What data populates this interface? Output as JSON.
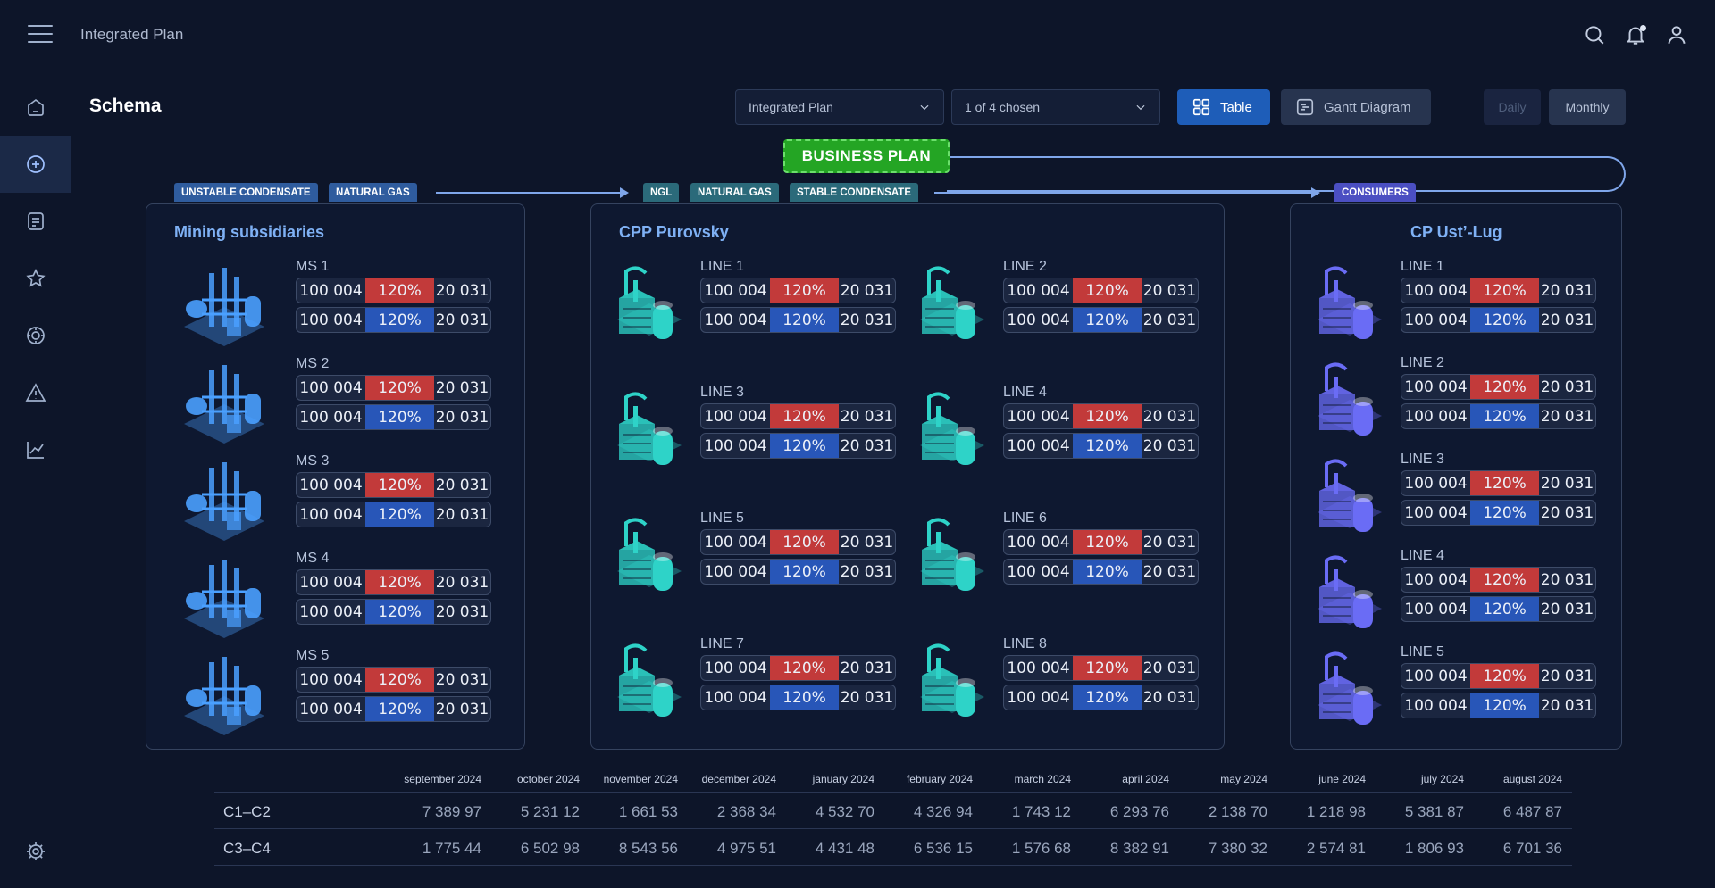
{
  "header": {
    "title": "Integrated Plan"
  },
  "page": {
    "title": "Schema"
  },
  "filters": {
    "plan_select": "Integrated Plan",
    "chosen_select": "1 of 4 chosen"
  },
  "view": {
    "table_label": "Table",
    "gantt_label": "Gantt Diagram",
    "daily_label": "Daily",
    "monthly_label": "Monthly"
  },
  "flow": {
    "business_plan": "BUSINESS PLAN",
    "tags": [
      "UNSTABLE CONDENSATE",
      "NATURAL GAS",
      "NGL",
      "NATURAL GAS",
      "STABLE CONDENSATE",
      "CONSUMERS"
    ]
  },
  "panels": {
    "mining": {
      "title": "Mining subsidiaries",
      "units": [
        {
          "label": "MS 1",
          "r1": [
            "100 004",
            "120%",
            "20 031"
          ],
          "r2": [
            "100 004",
            "120%",
            "20 031"
          ]
        },
        {
          "label": "MS 2",
          "r1": [
            "100 004",
            "120%",
            "20 031"
          ],
          "r2": [
            "100 004",
            "120%",
            "20 031"
          ]
        },
        {
          "label": "MS 3",
          "r1": [
            "100 004",
            "120%",
            "20 031"
          ],
          "r2": [
            "100 004",
            "120%",
            "20 031"
          ]
        },
        {
          "label": "MS 4",
          "r1": [
            "100 004",
            "120%",
            "20 031"
          ],
          "r2": [
            "100 004",
            "120%",
            "20 031"
          ]
        },
        {
          "label": "MS 5",
          "r1": [
            "100 004",
            "120%",
            "20 031"
          ],
          "r2": [
            "100 004",
            "120%",
            "20 031"
          ]
        }
      ]
    },
    "cpp": {
      "title": "CPP Purovsky",
      "units": [
        {
          "label": "LINE 1",
          "r1": [
            "100 004",
            "120%",
            "20 031"
          ],
          "r2": [
            "100 004",
            "120%",
            "20 031"
          ]
        },
        {
          "label": "LINE 2",
          "r1": [
            "100 004",
            "120%",
            "20 031"
          ],
          "r2": [
            "100 004",
            "120%",
            "20 031"
          ]
        },
        {
          "label": "LINE 3",
          "r1": [
            "100 004",
            "120%",
            "20 031"
          ],
          "r2": [
            "100 004",
            "120%",
            "20 031"
          ]
        },
        {
          "label": "LINE 4",
          "r1": [
            "100 004",
            "120%",
            "20 031"
          ],
          "r2": [
            "100 004",
            "120%",
            "20 031"
          ]
        },
        {
          "label": "LINE 5",
          "r1": [
            "100 004",
            "120%",
            "20 031"
          ],
          "r2": [
            "100 004",
            "120%",
            "20 031"
          ]
        },
        {
          "label": "LINE 6",
          "r1": [
            "100 004",
            "120%",
            "20 031"
          ],
          "r2": [
            "100 004",
            "120%",
            "20 031"
          ]
        },
        {
          "label": "LINE 7",
          "r1": [
            "100 004",
            "120%",
            "20 031"
          ],
          "r2": [
            "100 004",
            "120%",
            "20 031"
          ]
        },
        {
          "label": "LINE 8",
          "r1": [
            "100 004",
            "120%",
            "20 031"
          ],
          "r2": [
            "100 004",
            "120%",
            "20 031"
          ]
        }
      ]
    },
    "cp": {
      "title": "CP Ust’-Lug",
      "units": [
        {
          "label": "LINE 1",
          "r1": [
            "100 004",
            "120%",
            "20 031"
          ],
          "r2": [
            "100 004",
            "120%",
            "20 031"
          ]
        },
        {
          "label": "LINE 2",
          "r1": [
            "100 004",
            "120%",
            "20 031"
          ],
          "r2": [
            "100 004",
            "120%",
            "20 031"
          ]
        },
        {
          "label": "LINE 3",
          "r1": [
            "100 004",
            "120%",
            "20 031"
          ],
          "r2": [
            "100 004",
            "120%",
            "20 031"
          ]
        },
        {
          "label": "LINE 4",
          "r1": [
            "100 004",
            "120%",
            "20 031"
          ],
          "r2": [
            "100 004",
            "120%",
            "20 031"
          ]
        },
        {
          "label": "LINE 5",
          "r1": [
            "100 004",
            "120%",
            "20 031"
          ],
          "r2": [
            "100 004",
            "120%",
            "20 031"
          ]
        }
      ]
    }
  },
  "table": {
    "months": [
      "september 2024",
      "october 2024",
      "november 2024",
      "december 2024",
      "january 2024",
      "february 2024",
      "march 2024",
      "april 2024",
      "may 2024",
      "june 2024",
      "july 2024",
      "august 2024"
    ],
    "rows": [
      {
        "label": "C1–C2",
        "values": [
          "7 389 97",
          "5 231 12",
          "1 661 53",
          "2 368 34",
          "4 532 70",
          "4 326 94",
          "1 743 12",
          "6 293 76",
          "2 138 70",
          "1 218 98",
          "5 381 87",
          "6 487 87"
        ]
      },
      {
        "label": "C3–C4",
        "values": [
          "1 775 44",
          "6 502 98",
          "8 543 56",
          "4 975 51",
          "4 431 48",
          "6 536 15",
          "1 576 68",
          "8 382 91",
          "7 380 32",
          "2 574 81",
          "1 806 93",
          "6 701 36"
        ]
      }
    ]
  },
  "colors": {
    "accent": "#1e5db8",
    "red": "#c23a3a",
    "blue": "#2856b8",
    "plan_green": "#24a524",
    "mining_icon": "#4aa0ff",
    "cpp_icon": "#2ed3c8",
    "cp_icon": "#6a6cf5"
  },
  "sidebar_icons": [
    "home-icon",
    "plus-circle-icon",
    "document-icon",
    "star-icon",
    "target-icon",
    "warning-icon",
    "chart-icon",
    "settings-icon"
  ]
}
